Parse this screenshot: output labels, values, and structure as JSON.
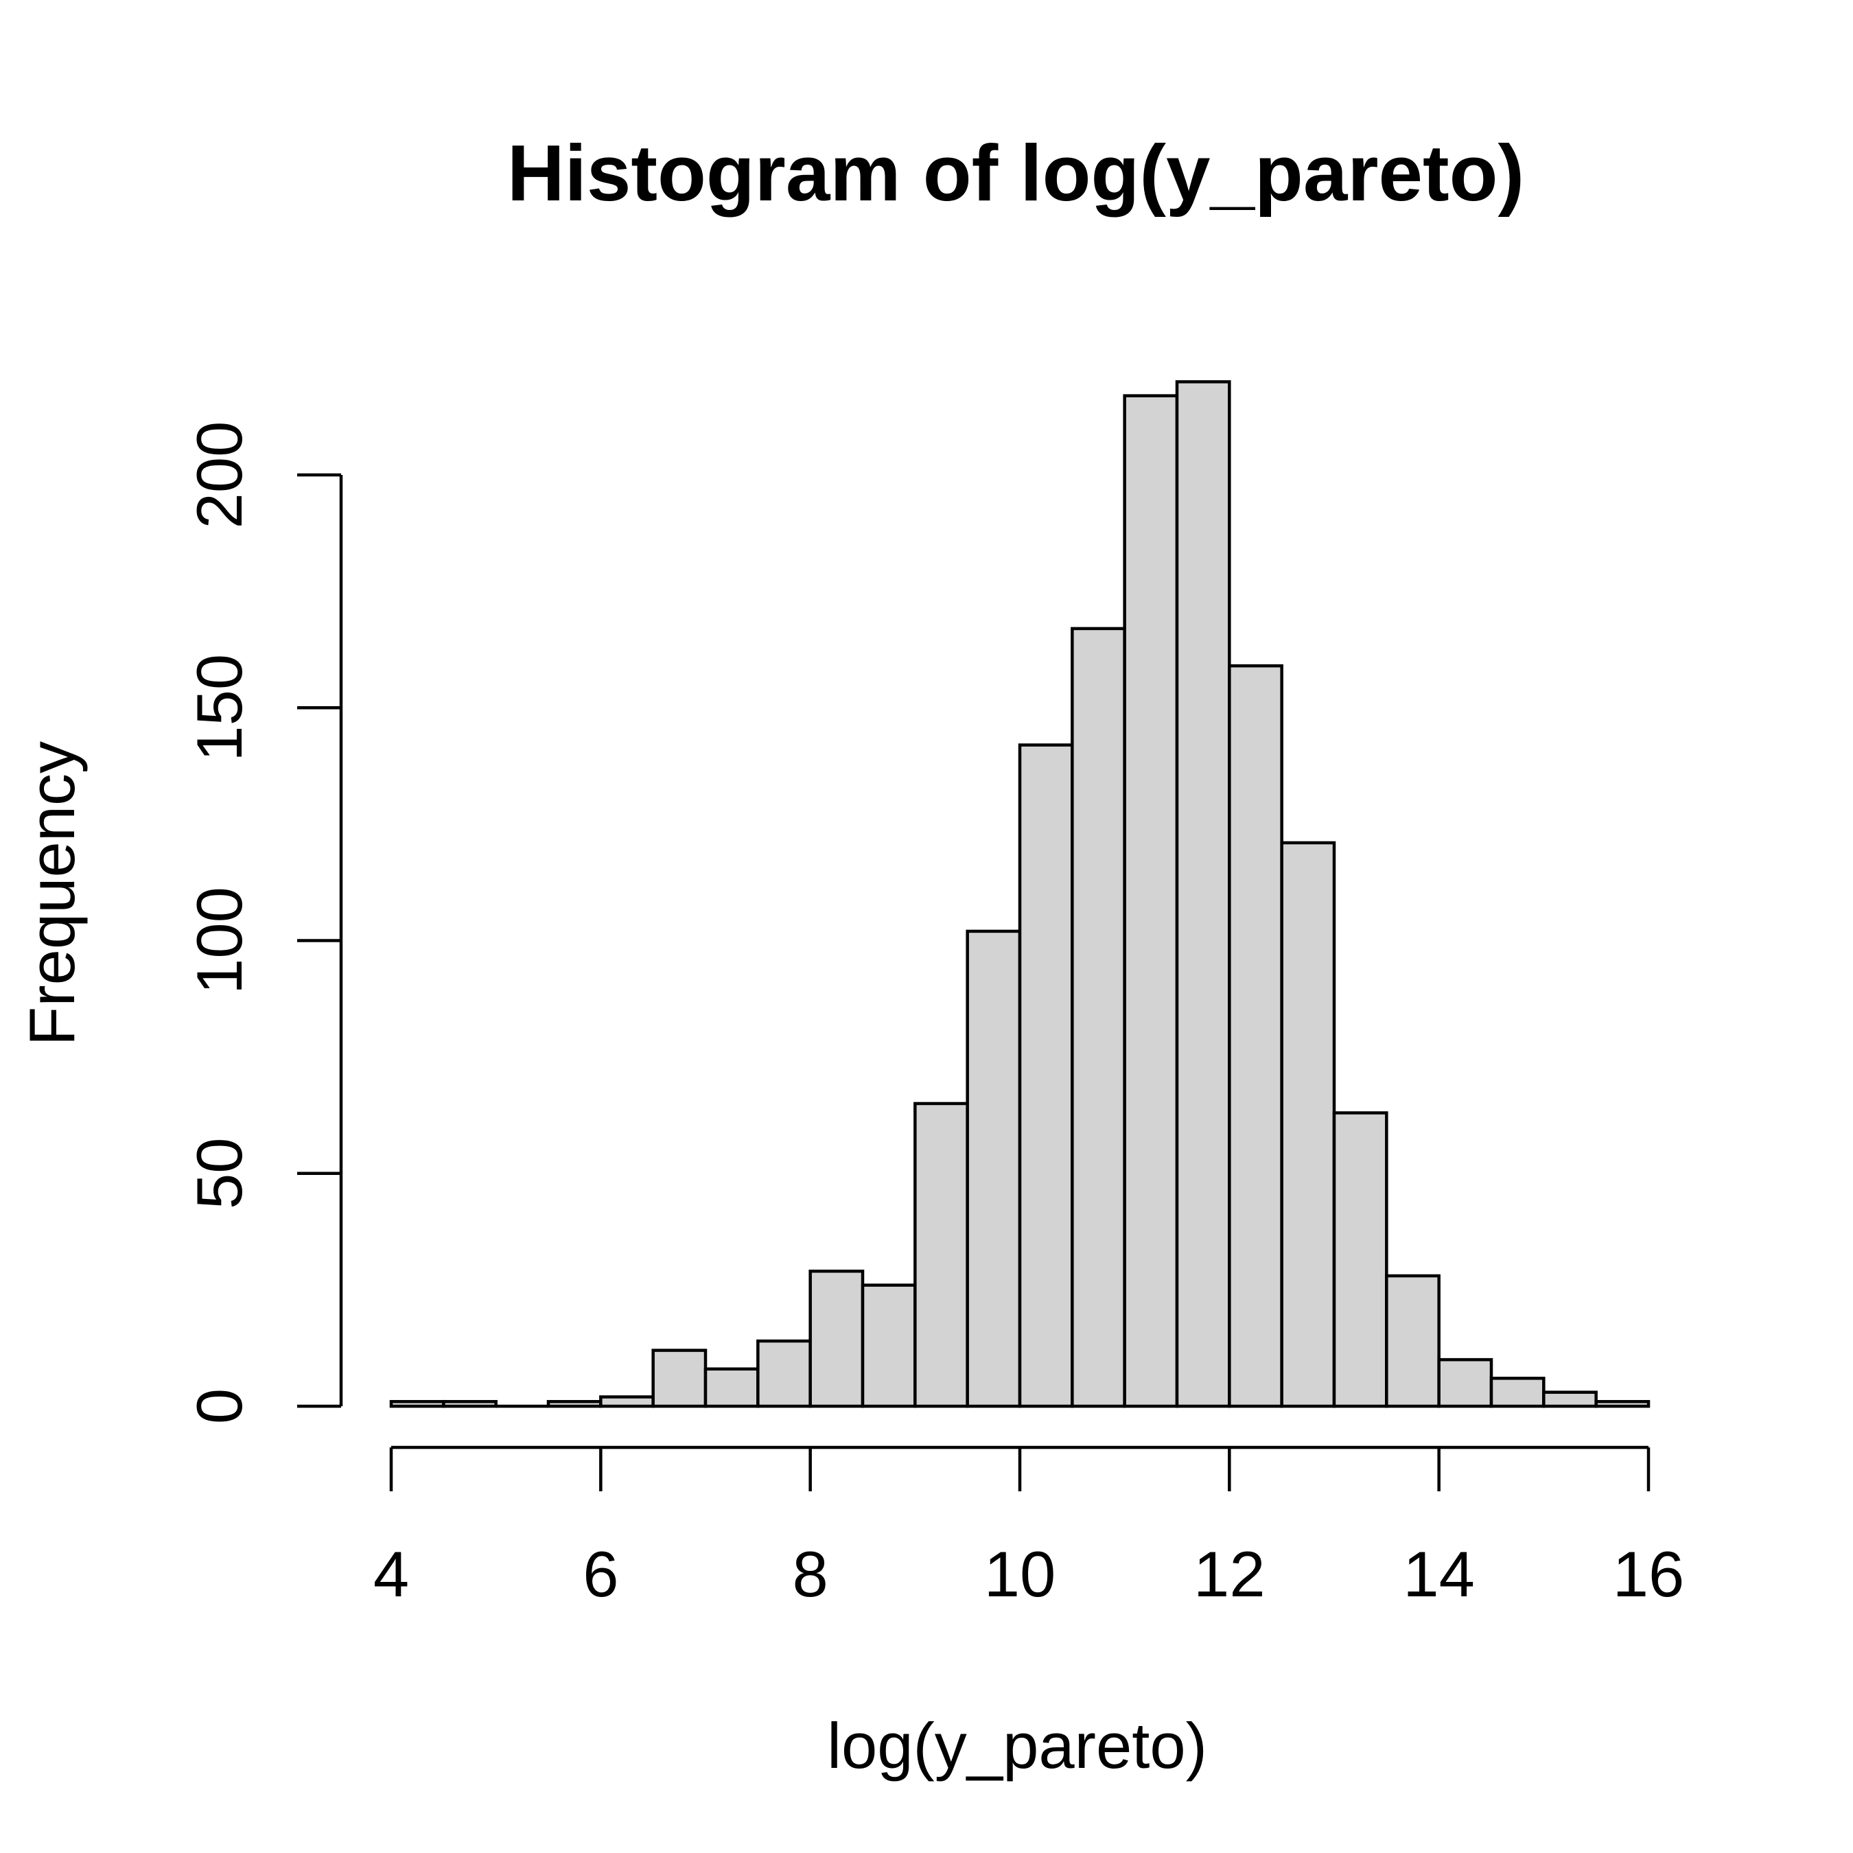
{
  "chart_data": {
    "type": "bar",
    "title": "Histogram of log(y_pareto)",
    "xlabel": "log(y_pareto)",
    "ylabel": "Frequency",
    "xlim": [
      4,
      16
    ],
    "ylim": [
      0,
      221
    ],
    "x_ticks": [
      4,
      6,
      8,
      10,
      12,
      14,
      16
    ],
    "y_ticks": [
      0,
      50,
      100,
      150,
      200
    ],
    "grid": false,
    "bin_width": 0.5,
    "bins": [
      {
        "start": 4.0,
        "end": 4.5,
        "count": 1
      },
      {
        "start": 4.5,
        "end": 5.0,
        "count": 1
      },
      {
        "start": 5.0,
        "end": 5.5,
        "count": 0
      },
      {
        "start": 5.5,
        "end": 6.0,
        "count": 1
      },
      {
        "start": 6.0,
        "end": 6.5,
        "count": 2
      },
      {
        "start": 6.5,
        "end": 7.0,
        "count": 12
      },
      {
        "start": 7.0,
        "end": 7.5,
        "count": 8
      },
      {
        "start": 7.5,
        "end": 8.0,
        "count": 14
      },
      {
        "start": 8.0,
        "end": 8.5,
        "count": 29
      },
      {
        "start": 8.5,
        "end": 9.0,
        "count": 26
      },
      {
        "start": 9.0,
        "end": 9.5,
        "count": 65
      },
      {
        "start": 9.5,
        "end": 10.0,
        "count": 102
      },
      {
        "start": 10.0,
        "end": 10.5,
        "count": 142
      },
      {
        "start": 10.5,
        "end": 11.0,
        "count": 167
      },
      {
        "start": 11.0,
        "end": 11.5,
        "count": 217
      },
      {
        "start": 11.5,
        "end": 12.0,
        "count": 220
      },
      {
        "start": 12.0,
        "end": 12.5,
        "count": 159
      },
      {
        "start": 12.5,
        "end": 13.0,
        "count": 121
      },
      {
        "start": 13.0,
        "end": 13.5,
        "count": 63
      },
      {
        "start": 13.5,
        "end": 14.0,
        "count": 28
      },
      {
        "start": 14.0,
        "end": 14.5,
        "count": 10
      },
      {
        "start": 14.5,
        "end": 15.0,
        "count": 6
      },
      {
        "start": 15.0,
        "end": 15.5,
        "count": 3
      },
      {
        "start": 15.5,
        "end": 16.0,
        "count": 1
      }
    ]
  }
}
